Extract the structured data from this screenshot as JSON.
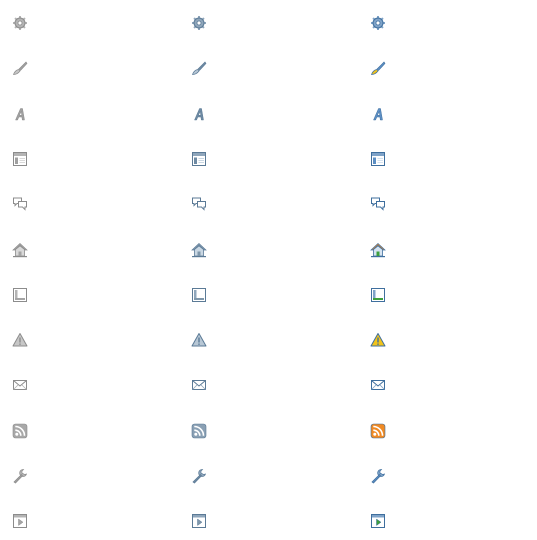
{
  "states": [
    {
      "name": "disabled",
      "colors": {
        "main": "#8c8c8c",
        "mid": "#b4b4b4",
        "light": "#d9d9d9",
        "accent": "#a0a0a0",
        "green": "#a5a5a5",
        "orange": "#a8a8a8",
        "yellow": "#c7c7c7"
      }
    },
    {
      "name": "hover",
      "colors": {
        "main": "#5b7a96",
        "mid": "#8fa6bb",
        "light": "#c9d7e3",
        "accent": "#6e8aa3",
        "green": "#7f97ab",
        "orange": "#8aa0b4",
        "yellow": "#b7c7d5"
      }
    },
    {
      "name": "active",
      "colors": {
        "main": "#3f6f9e",
        "mid": "#7fa3c8",
        "light": "#d5e3f1",
        "accent": "#5d8fc4",
        "green": "#3ea03e",
        "orange": "#f08a24",
        "yellow": "#f2c319"
      }
    }
  ],
  "icons": [
    {
      "name": "gear-icon"
    },
    {
      "name": "brush-icon"
    },
    {
      "name": "font-icon"
    },
    {
      "name": "layout-icon"
    },
    {
      "name": "comments-icon"
    },
    {
      "name": "home-icon"
    },
    {
      "name": "footer-layout-icon"
    },
    {
      "name": "warning-icon"
    },
    {
      "name": "mail-icon"
    },
    {
      "name": "rss-icon"
    },
    {
      "name": "wrench-icon"
    },
    {
      "name": "page-arrow-icon"
    }
  ]
}
